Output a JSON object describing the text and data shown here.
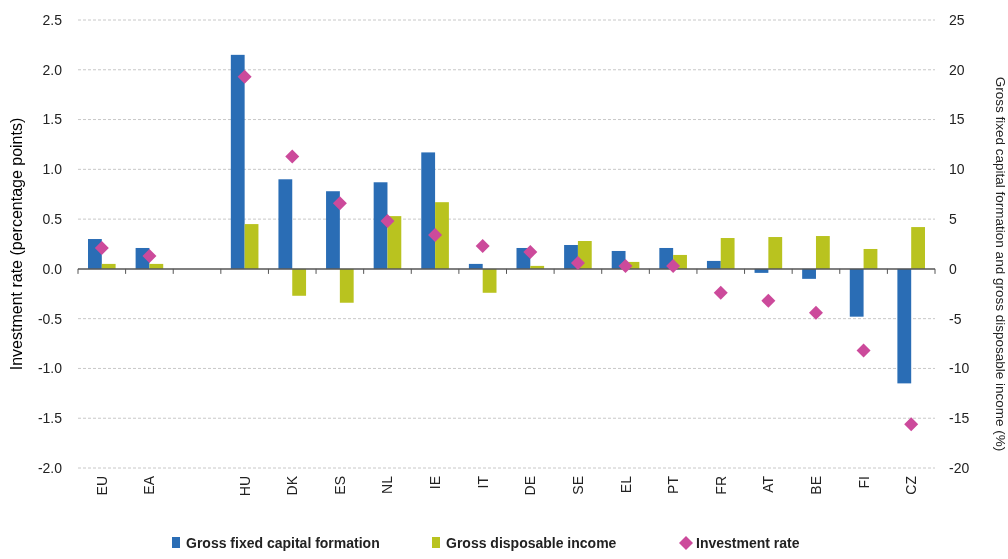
{
  "chart_data": {
    "type": "bar",
    "categories": [
      "EU",
      "EA",
      null,
      "HU",
      "DK",
      "ES",
      "NL",
      "IE",
      "IT",
      "DE",
      "SE",
      "EL",
      "PT",
      "FR",
      "AT",
      "BE",
      "FI",
      "CZ"
    ],
    "series": [
      {
        "name": "Gross fixed capital formation",
        "color": "#2a6db5",
        "axis": "y2",
        "values": [
          3.0,
          2.1,
          null,
          21.5,
          9.0,
          7.8,
          8.7,
          11.7,
          0.5,
          2.1,
          2.4,
          1.8,
          2.1,
          0.8,
          -0.4,
          -1.0,
          -4.8,
          -11.5
        ]
      },
      {
        "name": "Gross disposable income",
        "color": "#b9c31f",
        "axis": "y2",
        "values": [
          0.5,
          0.5,
          null,
          4.5,
          -2.7,
          -3.4,
          5.3,
          6.7,
          -2.4,
          0.3,
          2.8,
          0.7,
          1.4,
          3.1,
          3.2,
          3.3,
          2.0,
          4.2
        ]
      },
      {
        "name": "Investment rate",
        "color": "#cc4a9b",
        "type": "scatter",
        "marker": "diamond",
        "values": [
          0.21,
          0.13,
          null,
          1.93,
          1.13,
          0.66,
          0.48,
          0.34,
          0.23,
          0.17,
          0.06,
          0.03,
          0.03,
          -0.24,
          -0.32,
          -0.44,
          -0.82,
          -1.56
        ]
      }
    ],
    "ylabel": "Investment rate (percentage points)",
    "y2label": "Gross fixed capital formation and gross disposable income (%)",
    "ylim": [
      -2,
      2.5
    ],
    "yticks": [
      {
        "value": -2,
        "label": "-2.0"
      },
      {
        "value": -1.5,
        "label": "-1.5"
      },
      {
        "value": -1,
        "label": "-1.0"
      },
      {
        "value": -0.5,
        "label": "-0.5"
      },
      {
        "value": 0,
        "label": "0.0"
      },
      {
        "value": 0.5,
        "label": "0.5"
      },
      {
        "value": 1,
        "label": "1.0"
      },
      {
        "value": 1.5,
        "label": "1.5"
      },
      {
        "value": 2,
        "label": "2.0"
      },
      {
        "value": 2.5,
        "label": "2.5"
      }
    ],
    "y2lim": [
      -20,
      25
    ],
    "y2ticks": [
      -20,
      -15,
      -10,
      -5,
      0,
      5,
      10,
      15,
      20,
      25
    ],
    "grid": "y",
    "legend": "bottom"
  }
}
